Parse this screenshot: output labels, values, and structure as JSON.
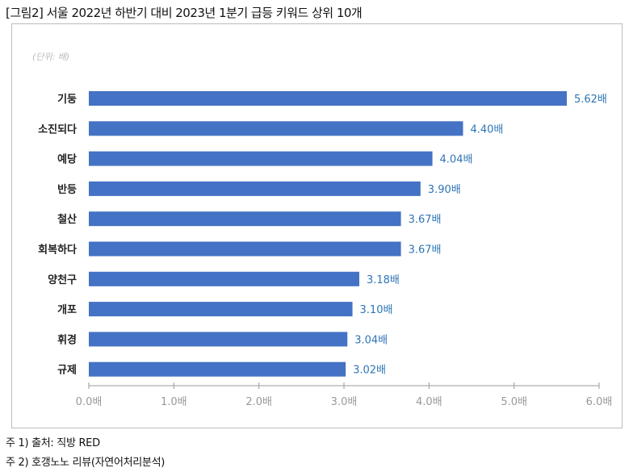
{
  "title": "[그림2] 서울 2022년 하반기 대비 2023년 1분기 급등 키워드 상위 10개",
  "notes": [
    "주 1) 출처: 직방 RED",
    "주 2) 호갱노노 리뷰(자연어처리분석)"
  ],
  "chart_data": {
    "type": "bar",
    "orientation": "horizontal",
    "unit_label": "(단위: 배)",
    "categories": [
      "기둥",
      "소진되다",
      "예당",
      "반등",
      "철산",
      "회복하다",
      "양천구",
      "개포",
      "휘경",
      "규제"
    ],
    "values": [
      5.62,
      4.4,
      4.04,
      3.9,
      3.67,
      3.67,
      3.18,
      3.1,
      3.04,
      3.02
    ],
    "data_labels": [
      "5.62배",
      "4.40배",
      "4.04배",
      "3.90배",
      "3.67배",
      "3.67배",
      "3.18배",
      "3.10배",
      "3.04배",
      "3.02배"
    ],
    "xlim": [
      0,
      6
    ],
    "xticks": [
      0,
      1,
      2,
      3,
      4,
      5,
      6
    ],
    "xtick_labels": [
      "0.0배",
      "1.0배",
      "2.0배",
      "3.0배",
      "4.0배",
      "5.0배",
      "6.0배"
    ],
    "grid": false,
    "colors": {
      "bar": "#4472c4",
      "label": "#2e75b6",
      "tick": "#999999"
    }
  }
}
